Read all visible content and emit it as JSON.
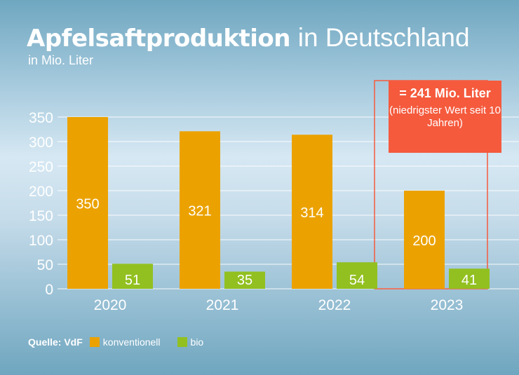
{
  "header": {
    "title_bold": "Apfelsaftproduktion",
    "title_light": "in Deutschland",
    "subtitle": "in Mio. Liter"
  },
  "callout": {
    "main": "= 241 Mio. Liter",
    "note": "(niedrigster Wert seit 10 Jahren)",
    "color": "#f55a3d"
  },
  "legend": {
    "source": "Quelle: VdF",
    "items": [
      {
        "label": "konventionell",
        "color": "#eba200"
      },
      {
        "label": "bio",
        "color": "#92c020"
      }
    ]
  },
  "chart_data": {
    "type": "bar",
    "title": "Apfelsaftproduktion in Deutschland",
    "subtitle": "in Mio. Liter",
    "xlabel": "",
    "ylabel": "",
    "categories": [
      "2020",
      "2021",
      "2022",
      "2023"
    ],
    "series": [
      {
        "name": "konventionell",
        "color": "#eba200",
        "values": [
          350,
          321,
          314,
          200
        ]
      },
      {
        "name": "bio",
        "color": "#92c020",
        "values": [
          51,
          35,
          54,
          41
        ]
      }
    ],
    "ylim": [
      0,
      350
    ],
    "yticks": [
      0,
      50,
      100,
      150,
      200,
      250,
      300,
      350
    ],
    "grid": true,
    "legend": "bottom-left",
    "annotation": {
      "category": "2023",
      "text": "= 241 Mio. Liter (niedrigster Wert seit 10 Jahren)"
    }
  }
}
